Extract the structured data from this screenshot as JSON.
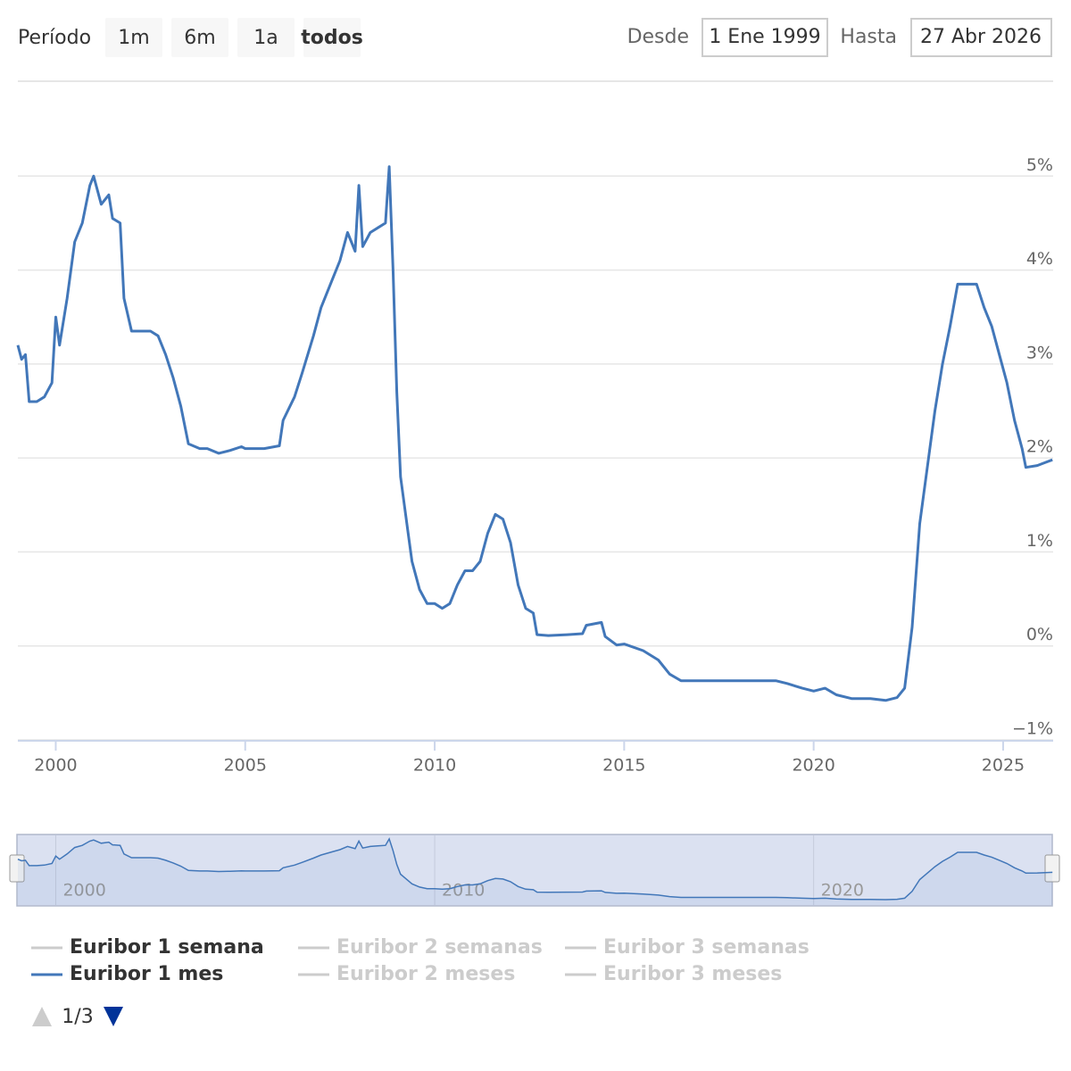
{
  "range_selector": {
    "label": "Período",
    "buttons": [
      "1m",
      "6m",
      "1a",
      "todos"
    ],
    "from_label": "Desde",
    "from": "1 Ene 1999",
    "to_label": "Hasta",
    "to": "27 Abr 2026"
  },
  "chart_data": {
    "type": "line",
    "x": [
      1999.0,
      1999.1,
      1999.2,
      1999.3,
      1999.5,
      1999.7,
      1999.9,
      2000.0,
      2000.1,
      2000.3,
      2000.5,
      2000.7,
      2000.9,
      2001.0,
      2001.2,
      2001.4,
      2001.5,
      2001.7,
      2001.8,
      2002.0,
      2002.3,
      2002.5,
      2002.7,
      2002.9,
      2003.1,
      2003.3,
      2003.5,
      2003.8,
      2004.0,
      2004.3,
      2004.6,
      2004.9,
      2005.0,
      2005.5,
      2005.9,
      2006.0,
      2006.3,
      2006.5,
      2006.8,
      2007.0,
      2007.3,
      2007.5,
      2007.7,
      2007.9,
      2008.0,
      2008.1,
      2008.3,
      2008.5,
      2008.7,
      2008.8,
      2008.9,
      2009.0,
      2009.1,
      2009.3,
      2009.4,
      2009.6,
      2009.8,
      2010.0,
      2010.2,
      2010.4,
      2010.6,
      2010.8,
      2011.0,
      2011.2,
      2011.4,
      2011.6,
      2011.8,
      2012.0,
      2012.2,
      2012.4,
      2012.6,
      2012.7,
      2013.0,
      2013.5,
      2013.9,
      2014.0,
      2014.4,
      2014.5,
      2014.8,
      2015.0,
      2015.5,
      2015.9,
      2016.2,
      2016.5,
      2017.0,
      2018.0,
      2019.0,
      2019.3,
      2019.7,
      2020.0,
      2020.3,
      2020.6,
      2021.0,
      2021.5,
      2021.9,
      2022.2,
      2022.4,
      2022.6,
      2022.8,
      2023.0,
      2023.2,
      2023.4,
      2023.6,
      2023.8,
      2024.0,
      2024.3,
      2024.5,
      2024.7,
      2024.9,
      2025.1,
      2025.3,
      2025.5,
      2025.6,
      2025.9,
      2026.1,
      2026.3
    ],
    "series": [
      {
        "name": "Euribor 1 mes",
        "color": "#4277b9",
        "values": [
          3.2,
          3.05,
          3.1,
          2.6,
          2.6,
          2.65,
          2.8,
          3.5,
          3.2,
          3.7,
          4.3,
          4.5,
          4.9,
          5.0,
          4.7,
          4.8,
          4.55,
          4.5,
          3.7,
          3.35,
          3.35,
          3.35,
          3.3,
          3.1,
          2.85,
          2.55,
          2.15,
          2.1,
          2.1,
          2.05,
          2.08,
          2.12,
          2.1,
          2.1,
          2.13,
          2.4,
          2.65,
          2.9,
          3.3,
          3.6,
          3.9,
          4.1,
          4.4,
          4.2,
          4.9,
          4.25,
          4.4,
          4.45,
          4.5,
          5.1,
          4.0,
          2.7,
          1.8,
          1.2,
          0.9,
          0.6,
          0.45,
          0.45,
          0.4,
          0.45,
          0.65,
          0.8,
          0.8,
          0.9,
          1.2,
          1.4,
          1.35,
          1.1,
          0.65,
          0.4,
          0.35,
          0.12,
          0.11,
          0.12,
          0.13,
          0.22,
          0.25,
          0.1,
          0.01,
          0.02,
          -0.05,
          -0.15,
          -0.3,
          -0.37,
          -0.37,
          -0.37,
          -0.37,
          -0.4,
          -0.45,
          -0.48,
          -0.45,
          -0.52,
          -0.56,
          -0.56,
          -0.58,
          -0.55,
          -0.45,
          0.2,
          1.3,
          1.9,
          2.5,
          3.0,
          3.4,
          3.85,
          3.85,
          3.85,
          3.6,
          3.4,
          3.1,
          2.8,
          2.4,
          2.1,
          1.9,
          1.92,
          1.95,
          1.98
        ]
      }
    ],
    "other_series": [
      {
        "name": "Euribor 1 semana",
        "visible": true
      },
      {
        "name": "Euribor 2 semanas",
        "visible": false
      },
      {
        "name": "Euribor 3 semanas",
        "visible": false
      },
      {
        "name": "Euribor 2 meses",
        "visible": false
      },
      {
        "name": "Euribor 3 meses",
        "visible": false
      }
    ],
    "xlim": [
      1999.0,
      2026.32
    ],
    "xticks": [
      2000,
      2005,
      2010,
      2015,
      2020,
      2025
    ],
    "ylim": [
      -1,
      6
    ],
    "yticks": [
      {
        "value": -1,
        "label": "−1%"
      },
      {
        "value": 0,
        "label": "0%"
      },
      {
        "value": 1,
        "label": "1%"
      },
      {
        "value": 2,
        "label": "2%"
      },
      {
        "value": 3,
        "label": "3%"
      },
      {
        "value": 4,
        "label": "4%"
      },
      {
        "value": 5,
        "label": "5%"
      }
    ],
    "grid": true,
    "navigator": {
      "xticks": [
        2000,
        2010,
        2020
      ]
    },
    "legend_page": "1/3"
  }
}
